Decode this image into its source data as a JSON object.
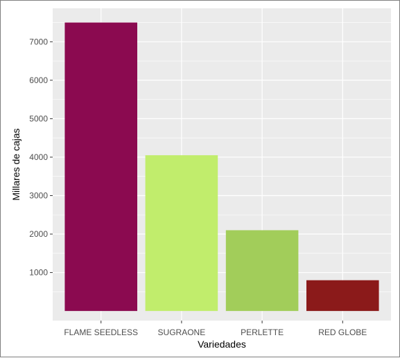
{
  "chart_data": {
    "type": "bar",
    "title": "",
    "xlabel": "Variedades",
    "ylabel": "Millares de cajas",
    "categories": [
      "FLAME SEEDLESS",
      "SUGRAONE",
      "PERLETTE",
      "RED GLOBE"
    ],
    "values": [
      7500,
      4050,
      2100,
      800
    ],
    "colors": [
      "#8B0A50",
      "#C1ED6C",
      "#A2CD5A",
      "#8B1A1A"
    ],
    "yticks": [
      1000,
      2000,
      3000,
      4000,
      5000,
      6000,
      7000
    ],
    "ylim": [
      -250,
      7870
    ],
    "grid": true,
    "legend": "none",
    "panel_background": "#EBEBEB",
    "gridline_color": "#FFFFFF"
  }
}
